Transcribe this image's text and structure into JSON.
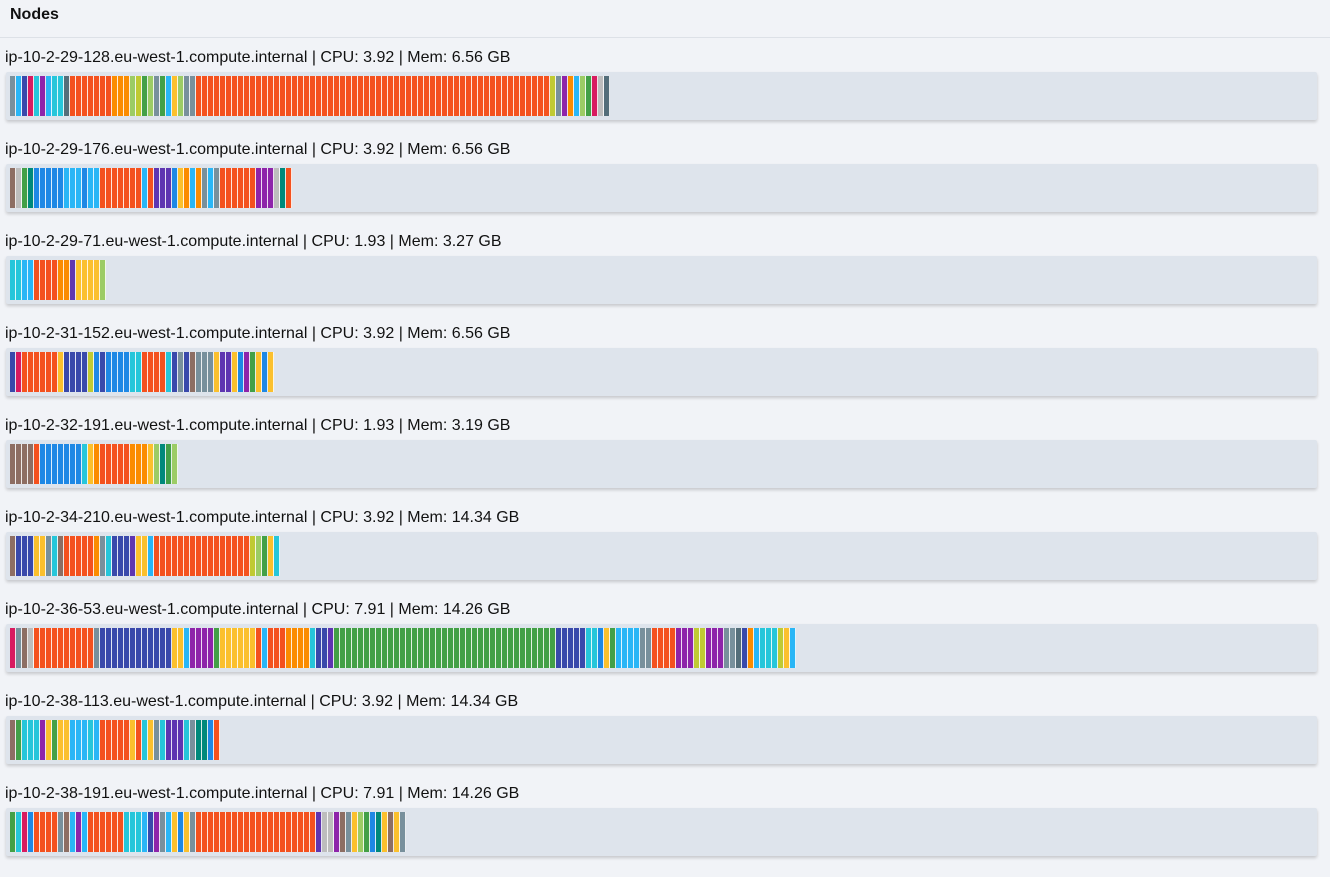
{
  "header": {
    "title": "Nodes"
  },
  "palette": {
    "r": "#f4511e",
    "o": "#fb8c00",
    "y": "#fbc02d",
    "g": "#43a047",
    "lg": "#9ccc65",
    "l": "#c0ca33",
    "t": "#00897b",
    "c": "#26c6da",
    "b": "#1e88e5",
    "lb": "#29b6f6",
    "i": "#3949ab",
    "p": "#5e35b1",
    "m": "#8e24aa",
    "pk": "#d81b60",
    "br": "#8d6e63",
    "gr": "#78909c",
    "lgr": "#bdbdbd",
    "dgr": "#546e7a"
  },
  "nodes": [
    {
      "label": "ip-10-2-29-128.eu-west-1.compute.internal | CPU: 3.92 | Mem: 6.56 GB",
      "pods": [
        [
          "gr",
          1
        ],
        [
          "lb",
          1
        ],
        [
          "i",
          1
        ],
        [
          "pk",
          1
        ],
        [
          "c",
          1
        ],
        [
          "m",
          1
        ],
        [
          "lb",
          1
        ],
        [
          "c",
          2
        ],
        [
          "dgr",
          1
        ],
        [
          "r",
          7
        ],
        [
          "o",
          3
        ],
        [
          "lg",
          1
        ],
        [
          "l",
          1
        ],
        [
          "g",
          1
        ],
        [
          "lg",
          1
        ],
        [
          "gr",
          1
        ],
        [
          "g",
          1
        ],
        [
          "lb",
          1
        ],
        [
          "y",
          1
        ],
        [
          "lg",
          1
        ],
        [
          "gr",
          2
        ],
        [
          "r",
          59
        ],
        [
          "l",
          1
        ],
        [
          "gr",
          1
        ],
        [
          "m",
          1
        ],
        [
          "o",
          1
        ],
        [
          "lb",
          1
        ],
        [
          "lg",
          1
        ],
        [
          "g",
          1
        ],
        [
          "pk",
          1
        ],
        [
          "lgr",
          1
        ],
        [
          "dgr",
          1
        ]
      ]
    },
    {
      "label": "ip-10-2-29-176.eu-west-1.compute.internal | CPU: 3.92 | Mem: 6.56 GB",
      "pods": [
        [
          "br",
          1
        ],
        [
          "lgr",
          1
        ],
        [
          "g",
          1
        ],
        [
          "t",
          1
        ],
        [
          "b",
          5
        ],
        [
          "lb",
          3
        ],
        [
          "b",
          1
        ],
        [
          "lb",
          2
        ],
        [
          "r",
          3
        ],
        [
          "r",
          4
        ],
        [
          "lb",
          1
        ],
        [
          "r",
          1
        ],
        [
          "p",
          3
        ],
        [
          "b",
          1
        ],
        [
          "y",
          1
        ],
        [
          "o",
          1
        ],
        [
          "lb",
          1
        ],
        [
          "o",
          1
        ],
        [
          "gr",
          1
        ],
        [
          "lb",
          1
        ],
        [
          "gr",
          1
        ],
        [
          "r",
          6
        ],
        [
          "m",
          3
        ],
        [
          "lgr",
          1
        ],
        [
          "t",
          1
        ],
        [
          "r",
          1
        ]
      ]
    },
    {
      "label": "ip-10-2-29-71.eu-west-1.compute.internal | CPU: 1.93 | Mem: 3.27 GB",
      "pods": [
        [
          "c",
          2
        ],
        [
          "lb",
          2
        ],
        [
          "r",
          2
        ],
        [
          "r",
          2
        ],
        [
          "o",
          2
        ],
        [
          "p",
          1
        ],
        [
          "y",
          2
        ],
        [
          "y",
          2
        ],
        [
          "lg",
          1
        ]
      ]
    },
    {
      "label": "ip-10-2-31-152.eu-west-1.compute.internal | CPU: 3.92 | Mem: 6.56 GB",
      "pods": [
        [
          "i",
          1
        ],
        [
          "pk",
          1
        ],
        [
          "r",
          6
        ],
        [
          "y",
          1
        ],
        [
          "i",
          4
        ],
        [
          "l",
          1
        ],
        [
          "b",
          1
        ],
        [
          "i",
          1
        ],
        [
          "b",
          4
        ],
        [
          "c",
          2
        ],
        [
          "r",
          4
        ],
        [
          "c",
          1
        ],
        [
          "i",
          1
        ],
        [
          "gr",
          1
        ],
        [
          "i",
          1
        ],
        [
          "br",
          1
        ],
        [
          "gr",
          3
        ],
        [
          "y",
          1
        ],
        [
          "p",
          2
        ],
        [
          "y",
          1
        ],
        [
          "b",
          1
        ],
        [
          "m",
          1
        ],
        [
          "g",
          1
        ],
        [
          "y",
          1
        ],
        [
          "b",
          1
        ],
        [
          "y",
          1
        ]
      ]
    },
    {
      "label": "ip-10-2-32-191.eu-west-1.compute.internal | CPU: 1.93 | Mem: 3.19 GB",
      "pods": [
        [
          "br",
          4
        ],
        [
          "r",
          1
        ],
        [
          "b",
          7
        ],
        [
          "c",
          1
        ],
        [
          "y",
          1
        ],
        [
          "o",
          1
        ],
        [
          "r",
          5
        ],
        [
          "o",
          3
        ],
        [
          "y",
          1
        ],
        [
          "lg",
          1
        ],
        [
          "t",
          1
        ],
        [
          "g",
          1
        ],
        [
          "lg",
          1
        ]
      ]
    },
    {
      "label": "ip-10-2-34-210.eu-west-1.compute.internal | CPU: 3.92 | Mem: 14.34 GB",
      "pods": [
        [
          "br",
          1
        ],
        [
          "i",
          3
        ],
        [
          "y",
          2
        ],
        [
          "gr",
          1
        ],
        [
          "c",
          1
        ],
        [
          "br",
          1
        ],
        [
          "r",
          5
        ],
        [
          "o",
          1
        ],
        [
          "gr",
          1
        ],
        [
          "c",
          1
        ],
        [
          "i",
          3
        ],
        [
          "p",
          1
        ],
        [
          "y",
          2
        ],
        [
          "lb",
          1
        ],
        [
          "r",
          16
        ],
        [
          "l",
          1
        ],
        [
          "lg",
          1
        ],
        [
          "g",
          1
        ],
        [
          "y",
          1
        ],
        [
          "c",
          1
        ]
      ]
    },
    {
      "label": "ip-10-2-36-53.eu-west-1.compute.internal | CPU: 7.91 | Mem: 14.26 GB",
      "pods": [
        [
          "pk",
          1
        ],
        [
          "gr",
          1
        ],
        [
          "br",
          1
        ],
        [
          "lgr",
          1
        ],
        [
          "r",
          10
        ],
        [
          "gr",
          1
        ],
        [
          "i",
          12
        ],
        [
          "y",
          2
        ],
        [
          "lb",
          1
        ],
        [
          "m",
          4
        ],
        [
          "g",
          1
        ],
        [
          "y",
          6
        ],
        [
          "r",
          1
        ],
        [
          "lb",
          1
        ],
        [
          "r",
          3
        ],
        [
          "o",
          4
        ],
        [
          "c",
          1
        ],
        [
          "i",
          2
        ],
        [
          "p",
          1
        ],
        [
          "g",
          37
        ],
        [
          "i",
          5
        ],
        [
          "c",
          2
        ],
        [
          "b",
          1
        ],
        [
          "y",
          1
        ],
        [
          "g",
          1
        ],
        [
          "lb",
          1
        ],
        [
          "lb",
          3
        ],
        [
          "gr",
          2
        ],
        [
          "r",
          4
        ],
        [
          "m",
          3
        ],
        [
          "l",
          2
        ],
        [
          "m",
          3
        ],
        [
          "gr",
          2
        ],
        [
          "dgr",
          1
        ],
        [
          "i",
          1
        ],
        [
          "o",
          1
        ],
        [
          "lb",
          1
        ],
        [
          "c",
          3
        ],
        [
          "l",
          1
        ],
        [
          "y",
          1
        ],
        [
          "lb",
          1
        ]
      ]
    },
    {
      "label": "ip-10-2-38-113.eu-west-1.compute.internal | CPU: 3.92 | Mem: 14.34 GB",
      "pods": [
        [
          "br",
          1
        ],
        [
          "g",
          1
        ],
        [
          "c",
          3
        ],
        [
          "m",
          1
        ],
        [
          "y",
          1
        ],
        [
          "g",
          1
        ],
        [
          "y",
          2
        ],
        [
          "lb",
          3
        ],
        [
          "c",
          1
        ],
        [
          "lb",
          1
        ],
        [
          "r",
          5
        ],
        [
          "y",
          1
        ],
        [
          "r",
          1
        ],
        [
          "c",
          1
        ],
        [
          "y",
          1
        ],
        [
          "gr",
          1
        ],
        [
          "c",
          1
        ],
        [
          "p",
          3
        ],
        [
          "c",
          1
        ],
        [
          "gr",
          1
        ],
        [
          "t",
          2
        ],
        [
          "b",
          1
        ],
        [
          "r",
          1
        ]
      ]
    },
    {
      "label": "ip-10-2-38-191.eu-west-1.compute.internal | CPU: 7.91 | Mem: 14.26 GB",
      "pods": [
        [
          "g",
          1
        ],
        [
          "c",
          1
        ],
        [
          "pk",
          1
        ],
        [
          "b",
          1
        ],
        [
          "r",
          4
        ],
        [
          "gr",
          1
        ],
        [
          "br",
          1
        ],
        [
          "lb",
          1
        ],
        [
          "m",
          1
        ],
        [
          "lb",
          1
        ],
        [
          "r",
          6
        ],
        [
          "c",
          3
        ],
        [
          "lb",
          1
        ],
        [
          "i",
          1
        ],
        [
          "m",
          1
        ],
        [
          "gr",
          1
        ],
        [
          "lb",
          1
        ],
        [
          "y",
          1
        ],
        [
          "b",
          1
        ],
        [
          "y",
          1
        ],
        [
          "gr",
          1
        ],
        [
          "r",
          20
        ],
        [
          "p",
          1
        ],
        [
          "lgr",
          2
        ],
        [
          "m",
          1
        ],
        [
          "br",
          1
        ],
        [
          "gr",
          1
        ],
        [
          "y",
          1
        ],
        [
          "lg",
          1
        ],
        [
          "g",
          1
        ],
        [
          "b",
          1
        ],
        [
          "t",
          1
        ],
        [
          "y",
          1
        ],
        [
          "br",
          1
        ],
        [
          "y",
          1
        ],
        [
          "gr",
          1
        ]
      ]
    }
  ]
}
